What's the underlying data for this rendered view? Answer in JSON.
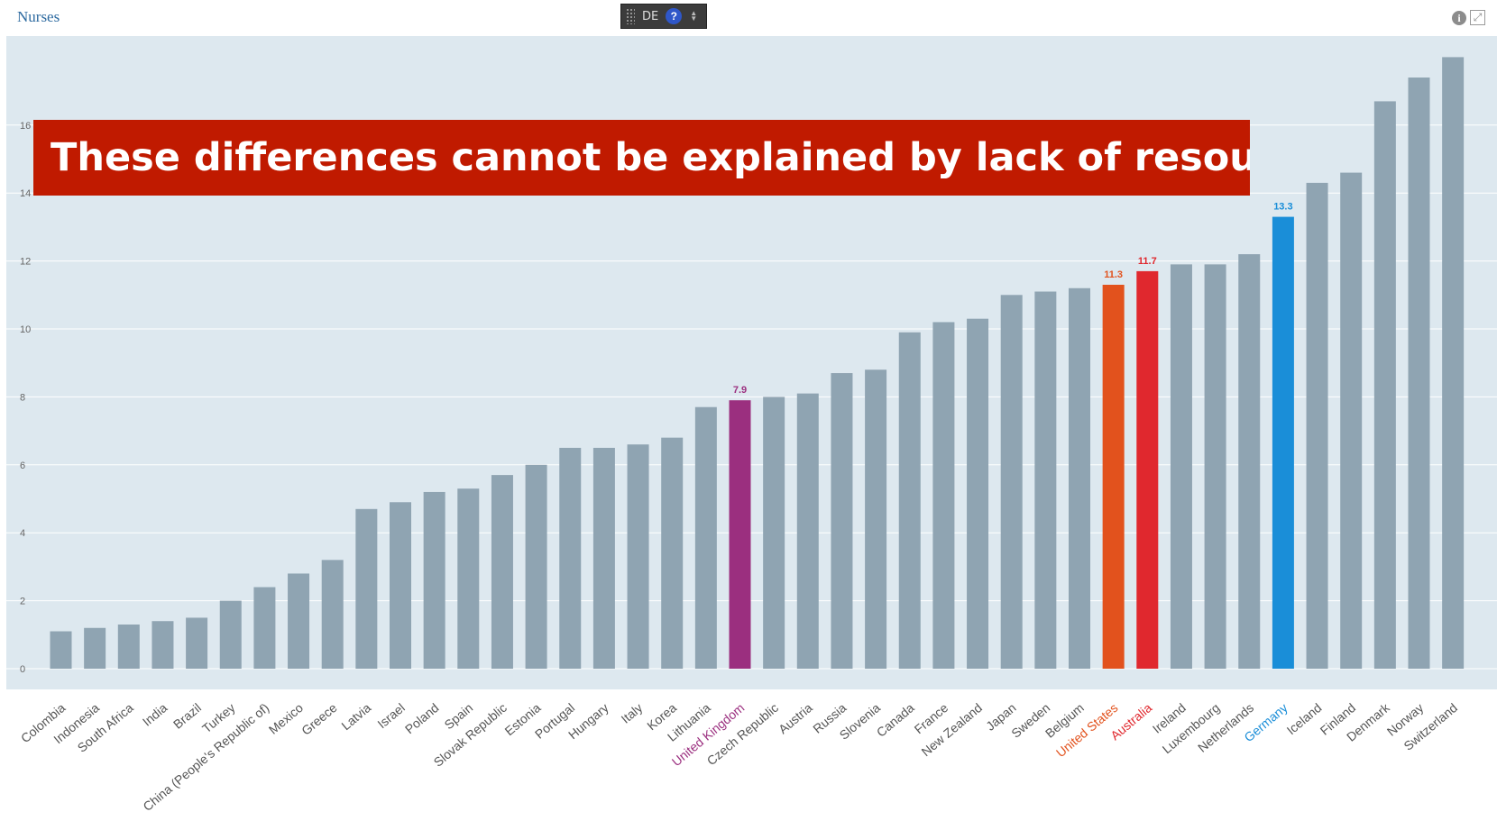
{
  "header": {
    "title": "Nurses",
    "lang_label": "DE",
    "help_glyph": "?",
    "info_glyph": "i",
    "expand_glyph": "⤢",
    "icons": [
      "grip-icon",
      "help-icon",
      "spinner-icon",
      "info-icon",
      "expand-icon"
    ]
  },
  "banner": {
    "text": "These differences cannot be explained by lack of resources"
  },
  "chart_data": {
    "type": "bar",
    "title": "Nurses",
    "xlabel": "",
    "ylabel": "",
    "ylim": [
      0,
      18
    ],
    "yticks": [
      0,
      2,
      4,
      6,
      8,
      10,
      12,
      14,
      16
    ],
    "grid": true,
    "colors": {
      "default": "#8fa4b2",
      "plot_bg": "#dde8ef",
      "grid": "#ffffff",
      "tick": "#666666"
    },
    "categories": [
      "Colombia",
      "Indonesia",
      "South Africa",
      "India",
      "Brazil",
      "Turkey",
      "China (People's Republic of)",
      "Mexico",
      "Greece",
      "Latvia",
      "Israel",
      "Poland",
      "Spain",
      "Slovak Republic",
      "Estonia",
      "Portugal",
      "Hungary",
      "Italy",
      "Korea",
      "Lithuania",
      "United Kingdom",
      "Czech Republic",
      "Austria",
      "Russia",
      "Slovenia",
      "Canada",
      "France",
      "New Zealand",
      "Japan",
      "Sweden",
      "Belgium",
      "United States",
      "Australia",
      "Ireland",
      "Luxembourg",
      "Netherlands",
      "Germany",
      "Iceland",
      "Finland",
      "Denmark",
      "Norway",
      "Switzerland"
    ],
    "values": [
      1.1,
      1.2,
      1.3,
      1.4,
      1.5,
      2.0,
      2.4,
      2.8,
      3.2,
      4.7,
      4.9,
      5.2,
      5.3,
      5.7,
      6.0,
      6.5,
      6.5,
      6.6,
      6.8,
      7.7,
      7.9,
      8.0,
      8.1,
      8.7,
      8.8,
      9.9,
      10.2,
      10.3,
      11.0,
      11.1,
      11.2,
      11.3,
      11.7,
      11.9,
      11.9,
      12.2,
      13.3,
      14.3,
      14.6,
      16.7,
      17.4,
      18.0
    ],
    "highlights": [
      {
        "category": "United Kingdom",
        "color": "#9b2f7f",
        "label": "7.9"
      },
      {
        "category": "United States",
        "color": "#e2521d",
        "label": "11.3"
      },
      {
        "category": "Australia",
        "color": "#e0282e",
        "label": "11.7"
      },
      {
        "category": "Germany",
        "color": "#1a8ed8",
        "label": "13.3"
      }
    ]
  }
}
